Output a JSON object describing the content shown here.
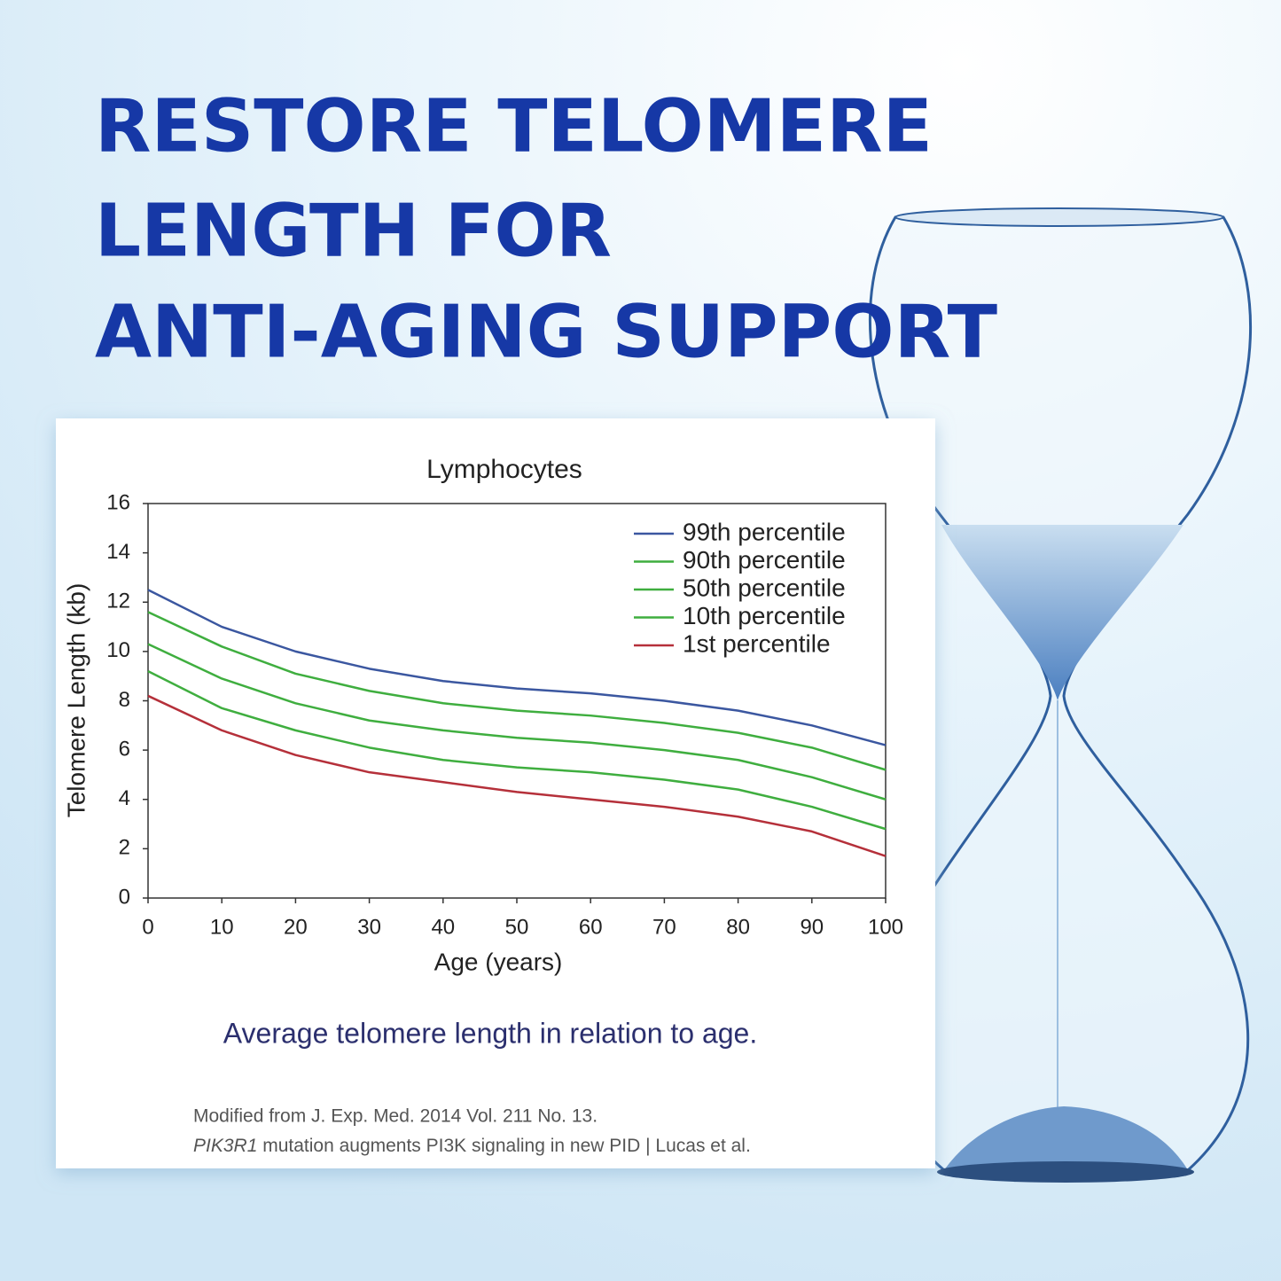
{
  "headline": [
    "RESTORE TELOMERE",
    "LENGTH FOR",
    "ANTI-AGING SUPPORT"
  ],
  "chart_data": {
    "type": "line",
    "title": "Lymphocytes",
    "x_label": "Age  (years)",
    "y_label": "Telomere Length (kb)",
    "x": [
      0,
      10,
      20,
      30,
      40,
      50,
      60,
      70,
      80,
      90,
      100
    ],
    "series": [
      {
        "name": "99th percentile",
        "color": "#3b57a0",
        "values": [
          12.5,
          11.0,
          10.0,
          9.3,
          8.8,
          8.5,
          8.3,
          8.0,
          7.6,
          7.0,
          6.2
        ]
      },
      {
        "name": "90th percentile",
        "color": "#3fae3f",
        "values": [
          11.6,
          10.2,
          9.1,
          8.4,
          7.9,
          7.6,
          7.4,
          7.1,
          6.7,
          6.1,
          5.2
        ]
      },
      {
        "name": "50th percentile",
        "color": "#3fae3f",
        "values": [
          10.3,
          8.9,
          7.9,
          7.2,
          6.8,
          6.5,
          6.3,
          6.0,
          5.6,
          4.9,
          4.0
        ]
      },
      {
        "name": "10th percentile",
        "color": "#3fae3f",
        "values": [
          9.2,
          7.7,
          6.8,
          6.1,
          5.6,
          5.3,
          5.1,
          4.8,
          4.4,
          3.7,
          2.8
        ]
      },
      {
        "name": "1st percentile",
        "color": "#b5303a",
        "values": [
          8.2,
          6.8,
          5.8,
          5.1,
          4.7,
          4.3,
          4.0,
          3.7,
          3.3,
          2.7,
          1.7
        ]
      }
    ],
    "xlim": [
      0,
      100
    ],
    "xticks": [
      0,
      10,
      20,
      30,
      40,
      50,
      60,
      70,
      80,
      90,
      100
    ],
    "ylim": [
      0,
      16
    ],
    "yticks": [
      0,
      2,
      4,
      6,
      8,
      10,
      12,
      14,
      16
    ],
    "grid": false,
    "legend": "upper right"
  },
  "caption": "Average telomere length in relation to age.",
  "citation": {
    "line1": "Modified from J. Exp. Med. 2014 Vol. 211 No. 13.",
    "gene": "PIK3R1",
    "line2": " mutation augments PI3K signaling in new PID | Lucas et al."
  }
}
